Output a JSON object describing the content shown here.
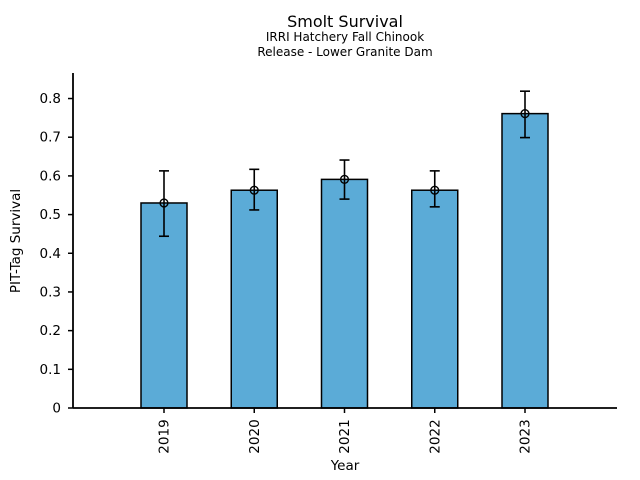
{
  "figure": {
    "title": "Smolt Survival",
    "subtitle_line1": "IRRI Hatchery Fall Chinook",
    "subtitle_line2": "Release - Lower Granite Dam"
  },
  "chart_data": {
    "type": "bar",
    "title": "Smolt Survival",
    "subtitle": [
      "IRRI Hatchery Fall Chinook",
      "Release - Lower Granite Dam"
    ],
    "xlabel": "Year",
    "ylabel": "PIT-Tag Survival",
    "categories": [
      "2019",
      "2020",
      "2021",
      "2022",
      "2023"
    ],
    "values": [
      0.53,
      0.563,
      0.591,
      0.563,
      0.761
    ],
    "error_low": [
      0.444,
      0.512,
      0.54,
      0.52,
      0.699
    ],
    "error_high": [
      0.613,
      0.617,
      0.641,
      0.613,
      0.819
    ],
    "ylim": [
      0,
      0.866
    ],
    "yticks": [
      0,
      0.1,
      0.2,
      0.3,
      0.4,
      0.5,
      0.6,
      0.7,
      0.8
    ],
    "ytick_labels": [
      "0",
      "0.1",
      "0.2",
      "0.3",
      "0.4",
      "0.5",
      "0.6",
      "0.7",
      "0.8"
    ],
    "grid": false,
    "legend_position": "none",
    "bar_color": "#5BABD7",
    "bar_edge_color": "#000000",
    "error_color": "#000000",
    "marker": "open-circle"
  }
}
